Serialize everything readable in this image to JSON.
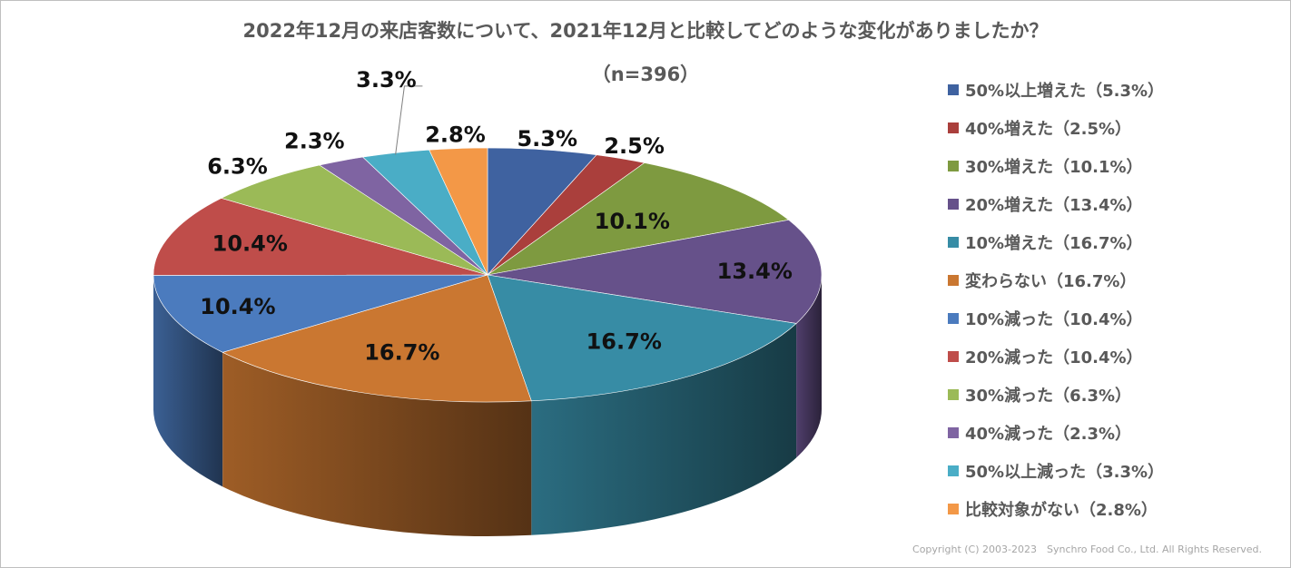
{
  "chart_data": {
    "type": "pie",
    "title": "2022年12月の来店客数について、2021年12月と比較してどのような変化がありましたか？",
    "subtitle": "（n=396）",
    "legend_position": "right",
    "style": "3d",
    "categories": [
      "50%以上増えた（5.3%）",
      "40%増えた（2.5%）",
      "30%増えた（10.1%）",
      "20%増えた（13.4%）",
      "10%増えた（16.7%）",
      "変わらない（16.7%）",
      "10%減った（10.4%）",
      "20%減った（10.4%）",
      "30%減った（6.3%）",
      "40%減った（2.3%）",
      "50%以上減った（3.3%）",
      "比較対象がない（2.8%）"
    ],
    "values": [
      5.3,
      2.5,
      10.1,
      13.4,
      16.7,
      16.7,
      10.4,
      10.4,
      6.3,
      2.3,
      3.3,
      2.8
    ],
    "data_labels": [
      "5.3%",
      "2.5%",
      "10.1%",
      "13.4%",
      "16.7%",
      "16.7%",
      "10.4%",
      "10.4%",
      "6.3%",
      "2.3%",
      "3.3%",
      "2.8%"
    ],
    "colors": [
      "#3F62A0",
      "#AA3F3C",
      "#7E9A40",
      "#66518A",
      "#378CA5",
      "#CA7731",
      "#4B7BBE",
      "#BF4D4A",
      "#9BBA57",
      "#7F64A2",
      "#4AADC6",
      "#F39847"
    ]
  },
  "footer": {
    "copyright": "Copyright (C) 2003-2023　Synchro Food Co., Ltd. All Rights Reserved."
  }
}
